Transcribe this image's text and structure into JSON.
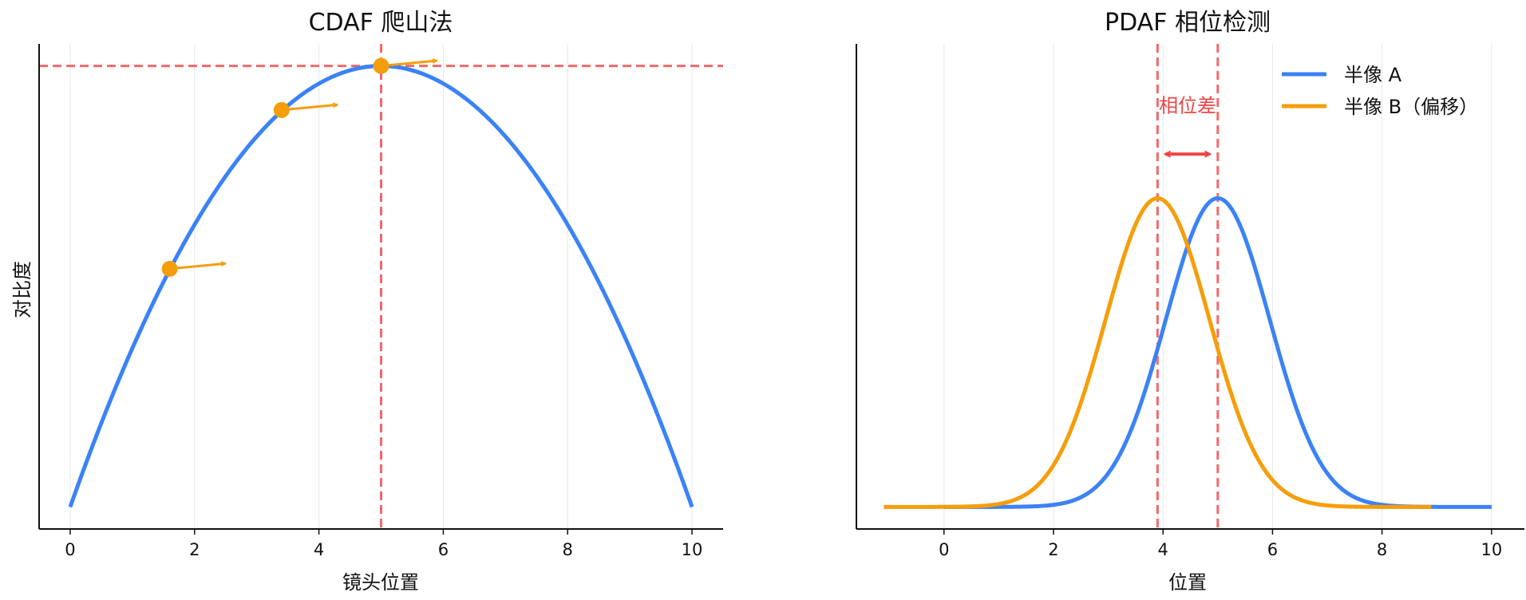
{
  "chart_data": [
    {
      "type": "line",
      "title": "CDAF 爬山法",
      "xlabel": "镜头位置",
      "ylabel": "对比度",
      "xlim": [
        -0.5,
        10.5
      ],
      "ylim": [
        -0.05,
        1.05
      ],
      "xticks": [
        0,
        2,
        4,
        6,
        8,
        10
      ],
      "x_tick_labels": [
        "0",
        "2",
        "4",
        "6",
        "8",
        "10"
      ],
      "y_ticks_visible": false,
      "grid": "x",
      "series": [
        {
          "color": "#3b82f6",
          "curve": "parabola",
          "vertex": [
            5,
            1.0
          ],
          "x_range": [
            0,
            10
          ],
          "x": [
            0,
            1,
            2,
            3,
            4,
            5,
            6,
            7,
            8,
            9,
            10
          ],
          "y": [
            0,
            0.36,
            0.64,
            0.84,
            0.96,
            1.0,
            0.96,
            0.84,
            0.64,
            0.36,
            0
          ]
        }
      ],
      "markers": [
        {
          "x": 1.6,
          "y": 0.54,
          "arrow_dx": 0.9,
          "arrow_dy": 0.012,
          "color": "#f59e0b"
        },
        {
          "x": 3.4,
          "y": 0.9,
          "arrow_dx": 0.9,
          "arrow_dy": 0.012,
          "color": "#f59e0b"
        },
        {
          "x": 5.0,
          "y": 1.0,
          "arrow_dx": 0.9,
          "arrow_dy": 0.012,
          "color": "#f59e0b"
        }
      ],
      "reference_lines": [
        {
          "orientation": "vertical",
          "value": 5,
          "color": "#ef4444",
          "style": "dashed"
        },
        {
          "orientation": "horizontal",
          "value": 1.0,
          "color": "#ef4444",
          "style": "dashed"
        }
      ]
    },
    {
      "type": "line",
      "title": "PDAF 相位检测",
      "xlabel": "位置",
      "xlim": [
        -1.6,
        10.6
      ],
      "ylim": [
        -0.05,
        1.05
      ],
      "xticks": [
        0,
        2,
        4,
        6,
        8,
        10
      ],
      "x_tick_labels": [
        "0",
        "2",
        "4",
        "6",
        "8",
        "10"
      ],
      "y_ticks_visible": false,
      "grid": "x",
      "legend_position": "top-right",
      "series": [
        {
          "name": "半像 A",
          "color": "#3b82f6",
          "curve": "gaussian",
          "mean": 5.0,
          "sigma": 0.95,
          "peak": 0.7,
          "x_range": [
            0,
            10
          ],
          "x": [
            0,
            2,
            3,
            4,
            4.5,
            5,
            5.5,
            6,
            7,
            8,
            10
          ],
          "y": [
            0,
            0.05,
            0.077,
            0.4,
            0.61,
            0.7,
            0.61,
            0.4,
            0.077,
            0.005,
            0
          ]
        },
        {
          "name": "半像 B（偏移）",
          "color": "#f59e0b",
          "curve": "gaussian",
          "mean": 3.9,
          "sigma": 0.95,
          "peak": 0.7,
          "x_range": [
            -1.1,
            8.9
          ],
          "x": [
            -1.1,
            1,
            2,
            3,
            3.9,
            4.5,
            5,
            6,
            7,
            8.9
          ],
          "y": [
            0,
            0.007,
            0.095,
            0.45,
            0.7,
            0.57,
            0.36,
            0.06,
            0.004,
            0
          ]
        }
      ],
      "reference_lines": [
        {
          "orientation": "vertical",
          "value": 3.9,
          "color": "#ef4444",
          "style": "dashed"
        },
        {
          "orientation": "vertical",
          "value": 5.0,
          "color": "#ef4444",
          "style": "dashed"
        }
      ],
      "annotations": [
        {
          "text": "相位差",
          "x": 4.45,
          "y": 0.91,
          "color": "#ef4444"
        },
        {
          "type": "double-arrow",
          "x_start": 3.9,
          "x_end": 5.0,
          "y": 0.8,
          "color": "#ef4444"
        }
      ]
    }
  ]
}
